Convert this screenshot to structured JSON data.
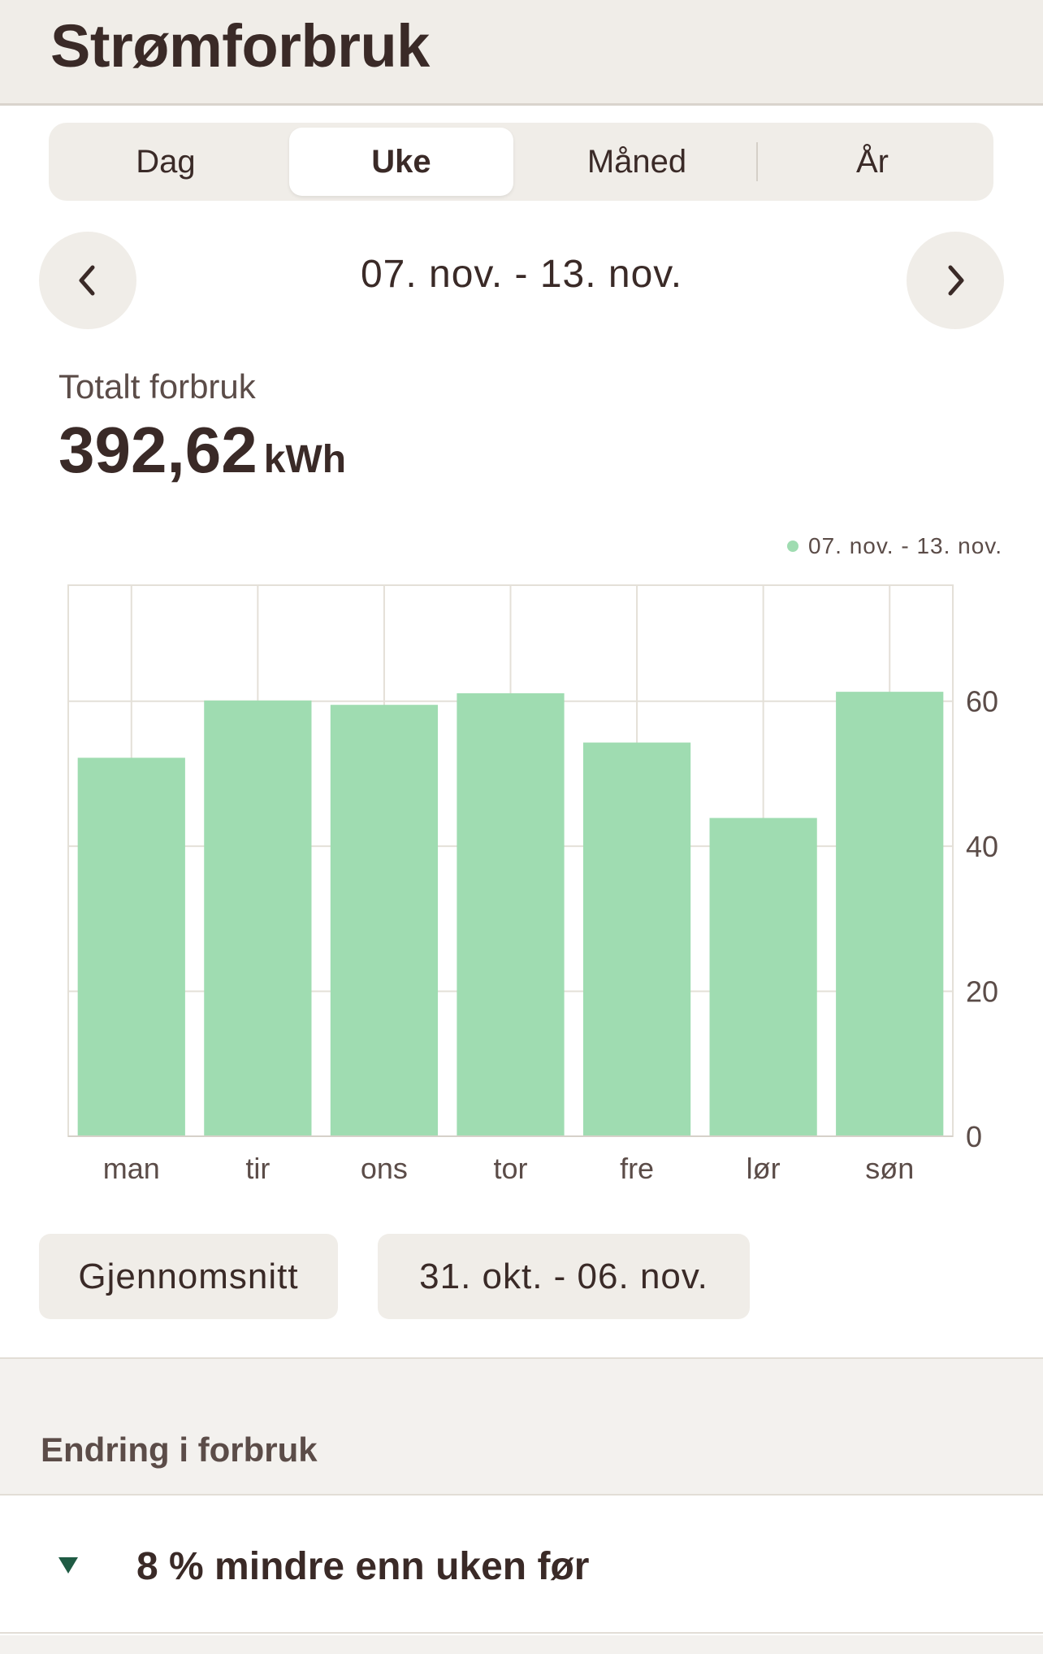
{
  "header": {
    "title": "Strømforbruk"
  },
  "tabs": [
    {
      "label": "Dag",
      "active": false
    },
    {
      "label": "Uke",
      "active": true
    },
    {
      "label": "Måned",
      "active": false
    },
    {
      "label": "År",
      "active": false
    }
  ],
  "period": {
    "label": "07. nov. - 13. nov.",
    "prev_icon": "chevron-left-icon",
    "next_icon": "chevron-right-icon"
  },
  "total": {
    "label": "Totalt forbruk",
    "value": "392,62",
    "unit": "kWh"
  },
  "chart_data": {
    "type": "bar",
    "categories": [
      "man",
      "tir",
      "ons",
      "tor",
      "fre",
      "lør",
      "søn"
    ],
    "series": [
      {
        "name": "07. nov. - 13. nov.",
        "values": [
          52.2,
          60.1,
          59.5,
          61.1,
          54.3,
          43.9,
          61.3
        ],
        "color": "#9fdcb1"
      }
    ],
    "yticks": [
      "0",
      "20",
      "40",
      "60"
    ],
    "ylim": [
      0,
      76
    ],
    "grid": true,
    "legend_position": "top-right",
    "y_axis_position": "right"
  },
  "compare_buttons": {
    "average": "Gjennomsnitt",
    "previous_period": "31. okt. - 06. nov."
  },
  "change": {
    "section_title": "Endring i forbruk",
    "text": "8 % mindre enn uken før",
    "icon": "triangle-down-icon",
    "icon_color": "#1f5b44"
  }
}
